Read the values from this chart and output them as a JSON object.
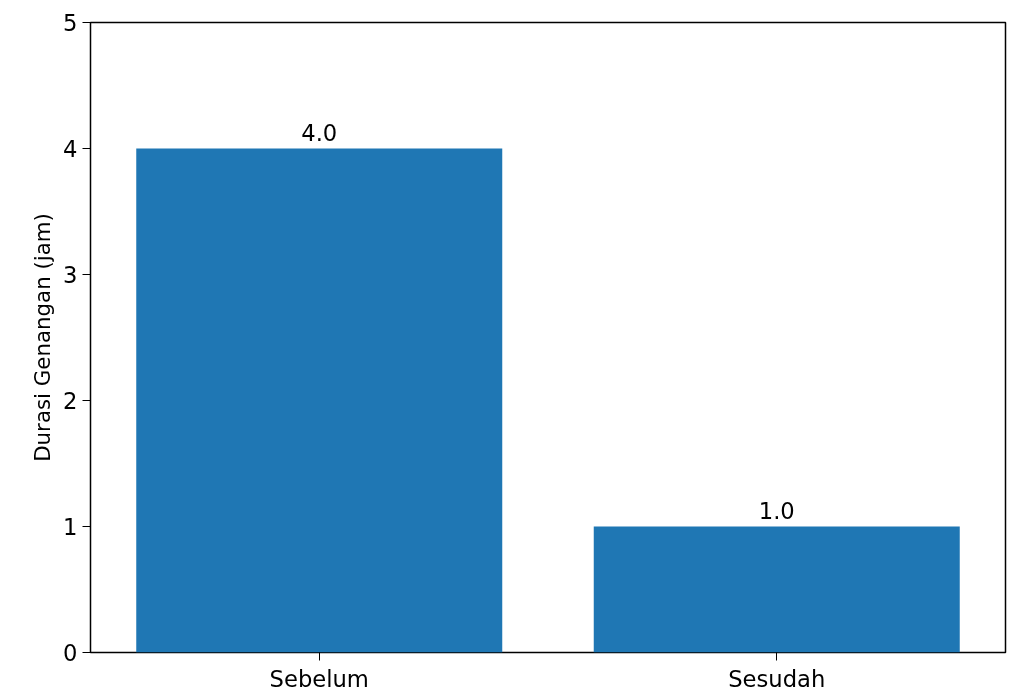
{
  "chart_data": {
    "type": "bar",
    "ylabel": "Durasi Genangan (jam)",
    "categories": [
      "Sebelum",
      "Sesudah"
    ],
    "values": [
      4.0,
      1.0
    ],
    "color": "#1f77b4",
    "ylim": [
      0,
      5
    ],
    "yticks": [
      0,
      1,
      2,
      3,
      4,
      5
    ],
    "value_labels": [
      "4.0",
      "1.0"
    ],
    "grid": false
  }
}
